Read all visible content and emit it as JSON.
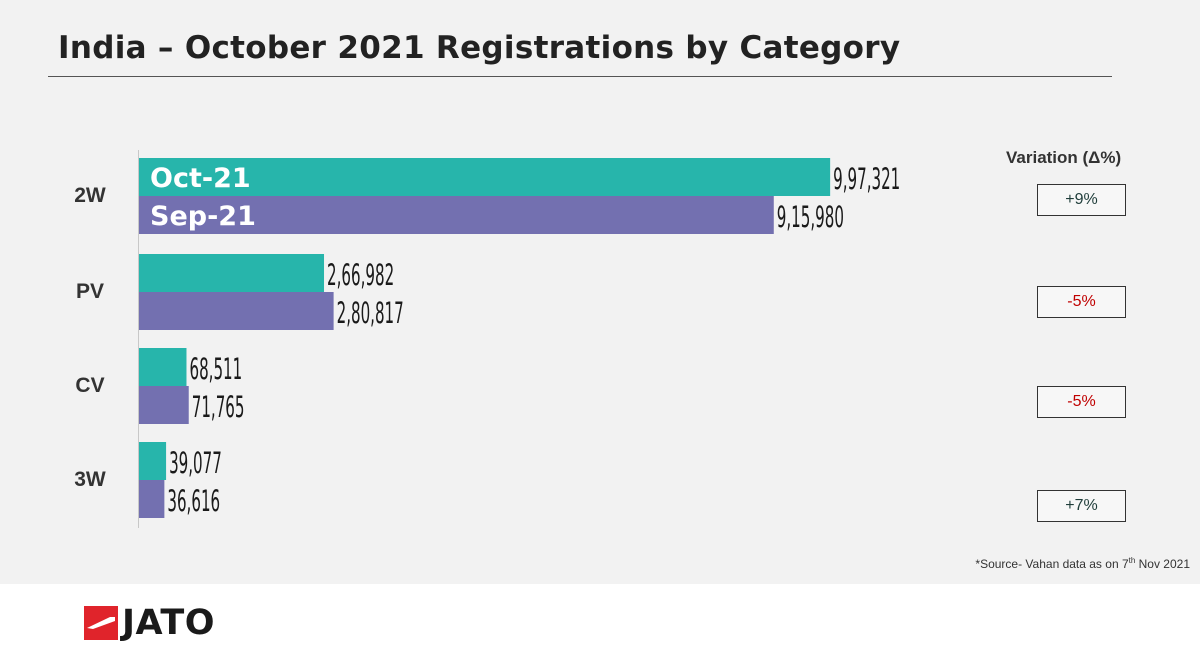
{
  "title": "India – October 2021 Registrations by Category",
  "variation_header": "Variation (Δ%)",
  "source_prefix": "*Source- Vahan data as on 7",
  "source_sup": "th",
  "source_suffix": " Nov 2021",
  "logo_text": "JATO",
  "colors": {
    "oct": "#27b5ab",
    "sep": "#7370b0",
    "positive": "#1f3d3a",
    "negative": "#c00000",
    "logo_red": "#e0242b"
  },
  "chart_data": {
    "type": "bar",
    "orientation": "horizontal",
    "categories": [
      "2W",
      "PV",
      "CV",
      "3W"
    ],
    "series": [
      {
        "name": "Oct-21",
        "values": [
          997321,
          266982,
          68511,
          39077
        ],
        "labels": [
          "9,97,321",
          "2,66,982",
          "68,511",
          "39,077"
        ]
      },
      {
        "name": "Sep-21",
        "values": [
          915980,
          280817,
          71765,
          36616
        ],
        "labels": [
          "9,15,980",
          "2,80,817",
          "71,765",
          "36,616"
        ]
      }
    ],
    "xlim": [
      0,
      1000000
    ],
    "variation": [
      "+9%",
      "-5%",
      "-5%",
      "+7%"
    ],
    "legend_placement": "inside first bars"
  }
}
